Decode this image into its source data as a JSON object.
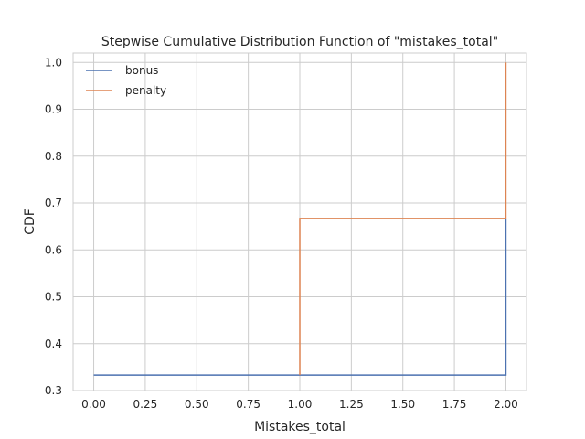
{
  "chart_data": {
    "type": "line",
    "drawstyle": "steps-post",
    "title": "Stepwise Cumulative Distribution Function of \"mistakes_total\"",
    "xlabel": "Mistakes_total",
    "ylabel": "CDF",
    "xlim": [
      -0.1,
      2.1
    ],
    "ylim": [
      0.3,
      1.02
    ],
    "xticks": [
      0.0,
      0.25,
      0.5,
      0.75,
      1.0,
      1.25,
      1.5,
      1.75,
      2.0
    ],
    "xtick_labels": [
      "0.00",
      "0.25",
      "0.50",
      "0.75",
      "1.00",
      "1.25",
      "1.50",
      "1.75",
      "2.00"
    ],
    "yticks": [
      0.3,
      0.4,
      0.5,
      0.6,
      0.7,
      0.8,
      0.9,
      1.0
    ],
    "ytick_labels": [
      "0.3",
      "0.4",
      "0.5",
      "0.6",
      "0.7",
      "0.8",
      "0.9",
      "1.0"
    ],
    "grid": true,
    "legend_position": "top-left",
    "series": [
      {
        "name": "bonus",
        "color": "#4c72b0",
        "x": [
          0.0,
          2.0,
          2.0
        ],
        "y": [
          0.333,
          0.333,
          0.667
        ]
      },
      {
        "name": "penalty",
        "color": "#dd8452",
        "x": [
          1.0,
          1.0,
          2.0,
          2.0
        ],
        "y": [
          0.333,
          0.667,
          0.667,
          1.0
        ]
      }
    ]
  }
}
